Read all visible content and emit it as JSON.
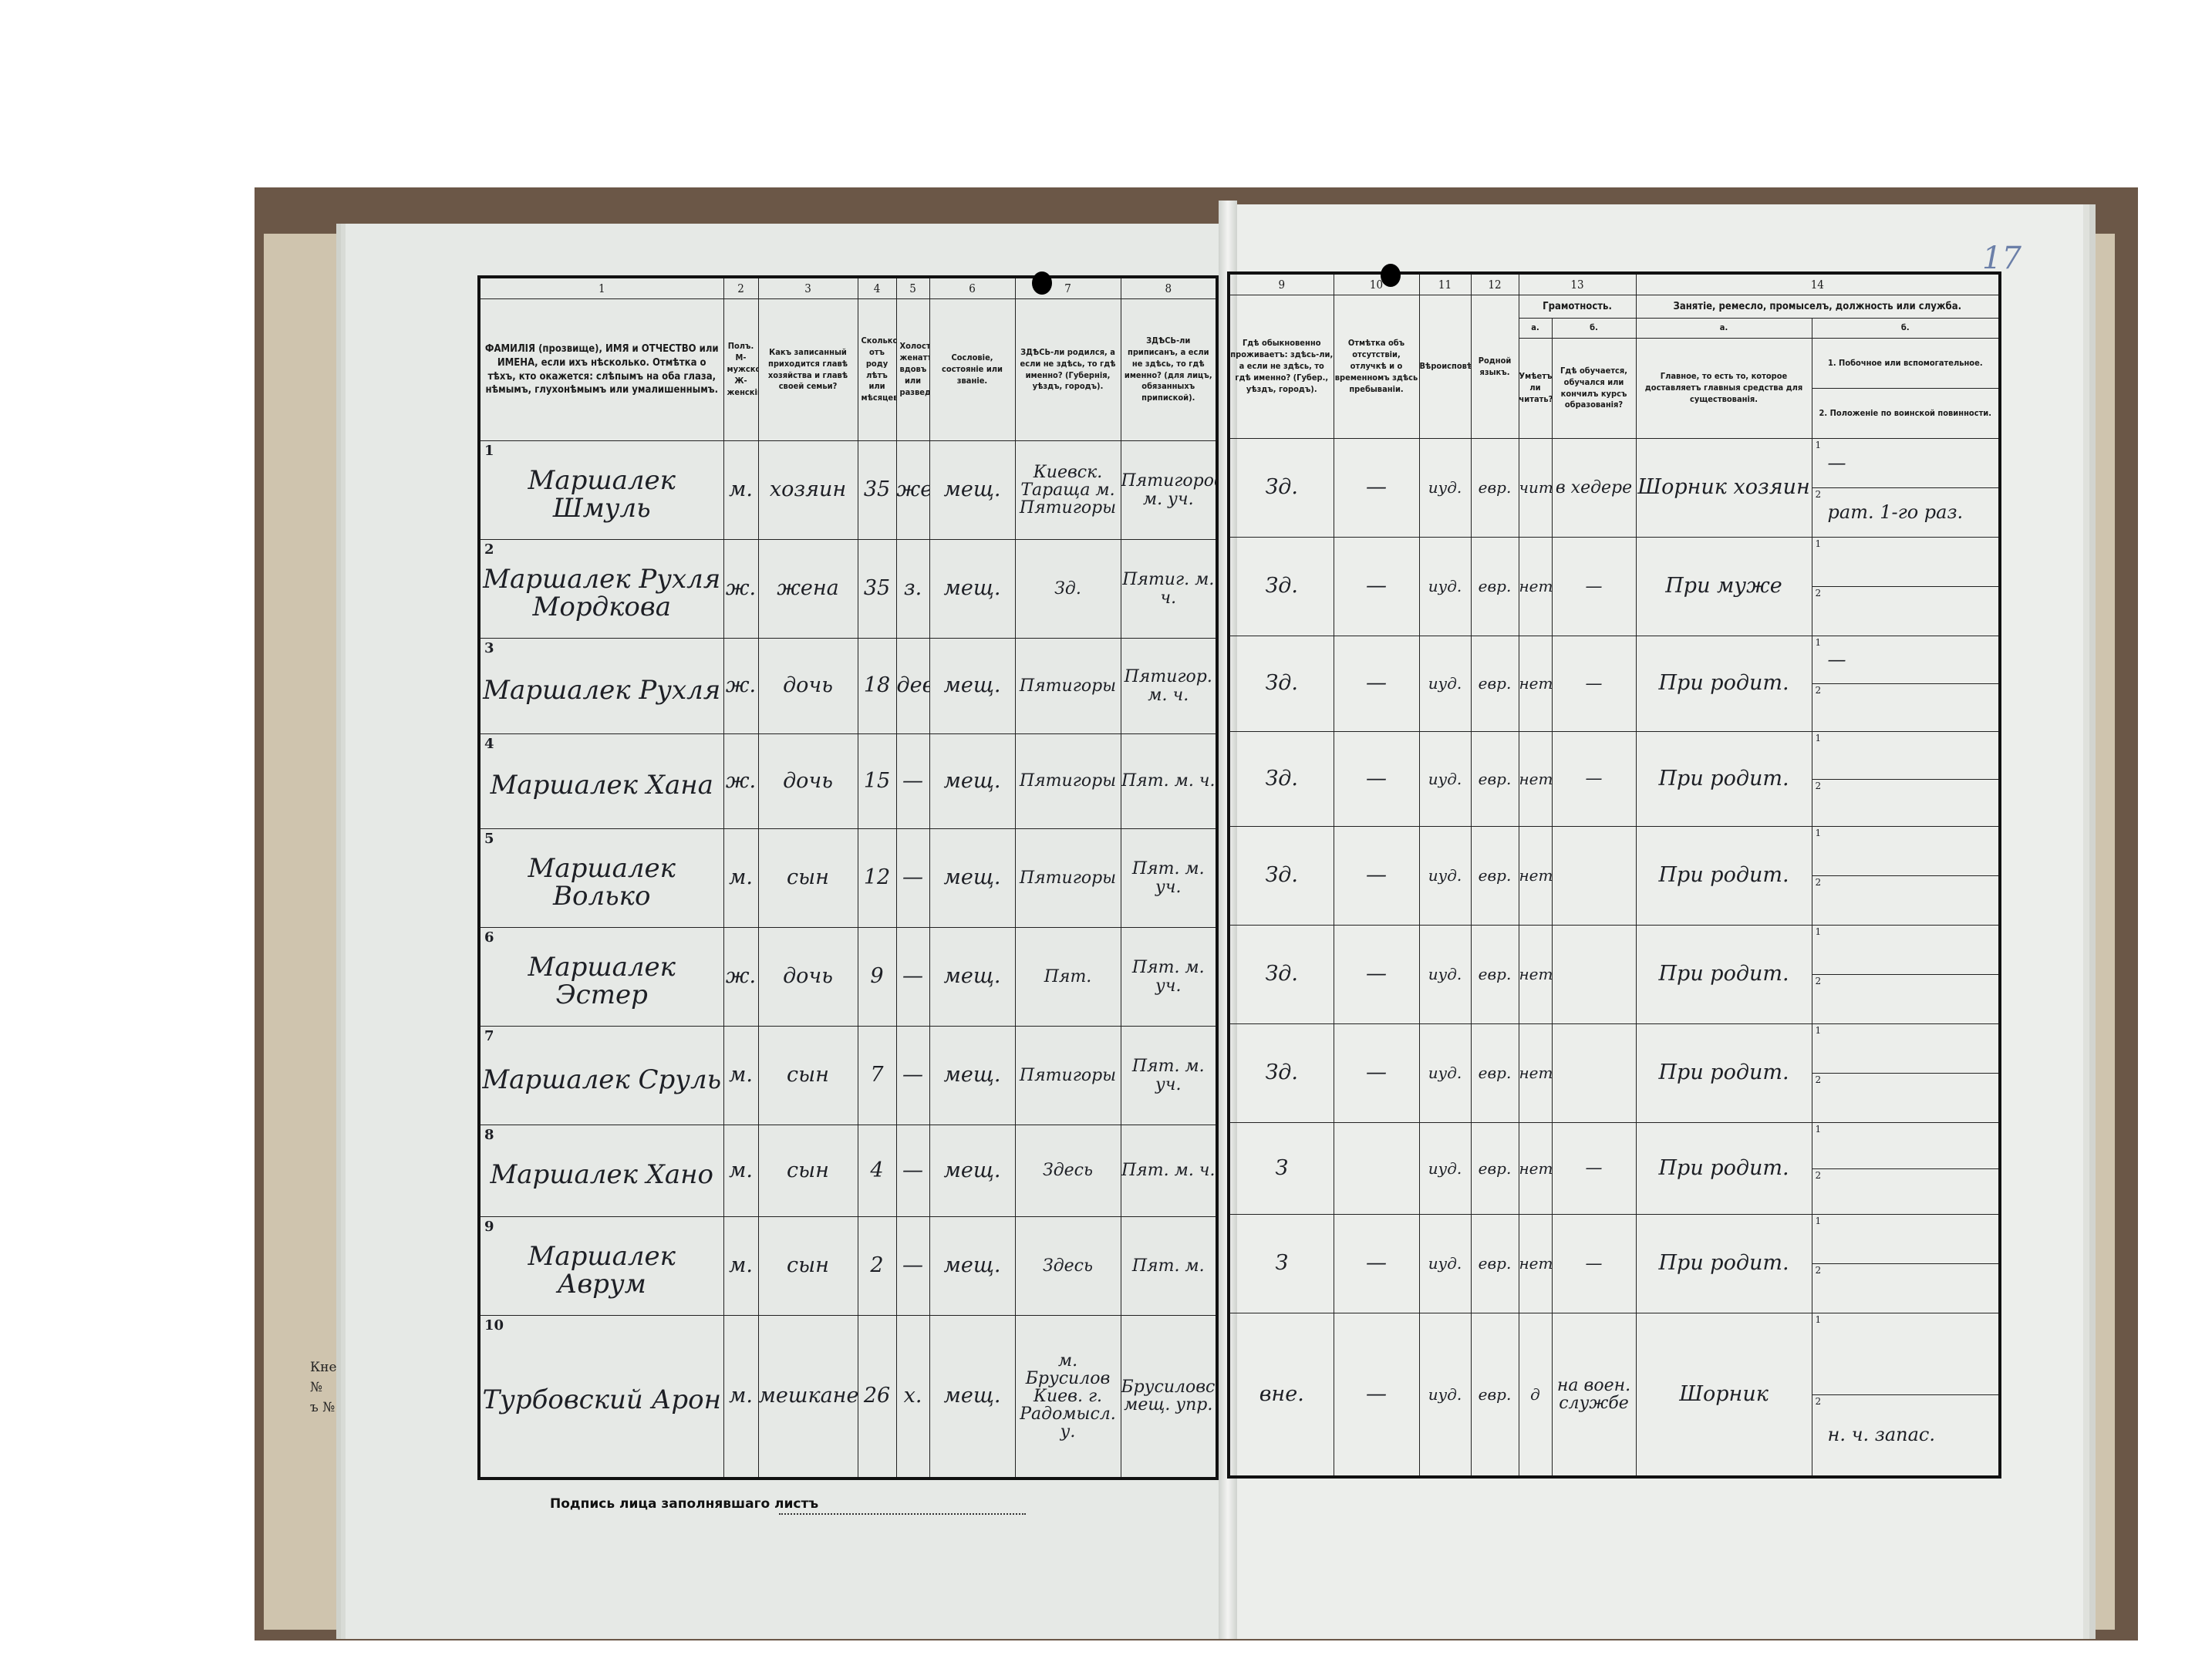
{
  "page_number": "17",
  "edge_fragments": [
    "Кне",
    "№",
    "ъ №"
  ],
  "signature_label": "Подпись лица заполнявшаго листъ",
  "left_headers": [
    {
      "num": "1",
      "text": "ФАМИЛІЯ (прозвище), ИМЯ и ОТЧЕСТВО или ИМЕНА, если ихъ нѣсколько. Отмѣтка о тѣхъ, кто окажется: слѣпымъ на оба глаза, нѣмымъ, глухонѣмымъ или умалишеннымъ."
    },
    {
      "num": "2",
      "text": "Полъ. М-мужской. Ж-женскій."
    },
    {
      "num": "3",
      "text": "Какъ записанный приходится главѣ хозяйства и главѣ своей семьи?"
    },
    {
      "num": "4",
      "text": "Сколько отъ роду лѣтъ или мѣсяцевъ?"
    },
    {
      "num": "5",
      "text": "Холостъ, женатъ, вдовъ или разведенъ."
    },
    {
      "num": "6",
      "text": "Сословіе, состояніе или званіе."
    },
    {
      "num": "7",
      "text": "ЗДѢСЬ-ли родился, а если не здѣсь, то гдѣ именно? (Губернія, уѣздъ, городъ)."
    },
    {
      "num": "8",
      "text": "ЗДѢСЬ-ли приписанъ, а если не здѣсь, то гдѣ именно? (для лицъ, обязанныхъ припиской)."
    }
  ],
  "right_headers": {
    "col9": {
      "num": "9",
      "text": "Гдѣ обыкновенно проживаетъ: здѣсь-ли, а если не здѣсь, то гдѣ именно? (Губер., уѣздъ, городъ)."
    },
    "col10": {
      "num": "10",
      "text": "Отмѣтка объ отсутствіи, отлучкѣ и о временномъ здѣсь пребываніи."
    },
    "col11": {
      "num": "11",
      "text": "Вѣроисповѣданіе."
    },
    "col12": {
      "num": "12",
      "text": "Родной языкъ."
    },
    "col13": {
      "num": "13",
      "title": "Грамотность.",
      "a_label": "а.",
      "a_text": "Умѣетъ-ли читать?",
      "b_label": "б.",
      "b_text": "Гдѣ обучается, обучался или кончилъ курсъ образованія?"
    },
    "col14": {
      "num": "14",
      "title": "Занятіе, ремесло, промыселъ, должность или служба.",
      "a_label": "а.",
      "a_text": "Главное, то есть то, которое доставляетъ главныя средства для существованія.",
      "b_label": "б.",
      "b1_text": "1. Побочное или вспомогательное.",
      "b2_text": "2. Положеніе по воинской повинности."
    }
  },
  "rows": [
    {
      "n": "1",
      "name": "Маршалек Шмуль",
      "sex": "м.",
      "relation": "хозяин",
      "age": "35",
      "marital": "жен.",
      "estate": "мещ.",
      "born": "Киевск. Тараща м. Пятигоры",
      "registered": "Пятигоровское м. уч.",
      "residence": "Зд.",
      "absence": "—",
      "religion": "иуд.",
      "language": "евр.",
      "literate": "чит.",
      "education": "в хедере",
      "occupation": "Шорник хозяин",
      "b1": "—",
      "b2": "рат. 1-го раз."
    },
    {
      "n": "2",
      "name": "Маршалек Рухля Мордкова",
      "sex": "ж.",
      "relation": "жена",
      "age": "35",
      "marital": "з.",
      "estate": "мещ.",
      "born": "Зд.",
      "registered": "Пятиг. м. ч.",
      "residence": "Зд.",
      "absence": "—",
      "religion": "иуд.",
      "language": "евр.",
      "literate": "нет",
      "education": "—",
      "occupation": "При муже",
      "b1": "",
      "b2": ""
    },
    {
      "n": "3",
      "name": "Маршалек Рухля",
      "sex": "ж.",
      "relation": "дочь",
      "age": "18",
      "marital": "дев.",
      "estate": "мещ.",
      "born": "Пятигоры",
      "registered": "Пятигор. м. ч.",
      "residence": "Зд.",
      "absence": "—",
      "religion": "иуд.",
      "language": "евр.",
      "literate": "нет",
      "education": "—",
      "occupation": "При родит.",
      "b1": "—",
      "b2": ""
    },
    {
      "n": "4",
      "name": "Маршалек Хана",
      "sex": "ж.",
      "relation": "дочь",
      "age": "15",
      "marital": "—",
      "estate": "мещ.",
      "born": "Пятигоры",
      "registered": "Пят. м. ч.",
      "residence": "Зд.",
      "absence": "—",
      "religion": "иуд.",
      "language": "евр.",
      "literate": "нет",
      "education": "—",
      "occupation": "При родит.",
      "b1": "",
      "b2": ""
    },
    {
      "n": "5",
      "name": "Маршалек Волько",
      "sex": "м.",
      "relation": "сын",
      "age": "12",
      "marital": "—",
      "estate": "мещ.",
      "born": "Пятигоры",
      "registered": "Пят. м. уч.",
      "residence": "Зд.",
      "absence": "—",
      "religion": "иуд.",
      "language": "евр.",
      "literate": "нет",
      "education": "",
      "occupation": "При родит.",
      "b1": "",
      "b2": ""
    },
    {
      "n": "6",
      "name": "Маршалек Эстер",
      "sex": "ж.",
      "relation": "дочь",
      "age": "9",
      "marital": "—",
      "estate": "мещ.",
      "born": "Пят.",
      "registered": "Пят. м. уч.",
      "residence": "Зд.",
      "absence": "—",
      "religion": "иуд.",
      "language": "евр.",
      "literate": "нет",
      "education": "",
      "occupation": "При родит.",
      "b1": "",
      "b2": ""
    },
    {
      "n": "7",
      "name": "Маршалек Сруль",
      "sex": "м.",
      "relation": "сын",
      "age": "7",
      "marital": "—",
      "estate": "мещ.",
      "born": "Пятигоры",
      "registered": "Пят. м. уч.",
      "residence": "Зд.",
      "absence": "—",
      "religion": "иуд.",
      "language": "евр.",
      "literate": "нет",
      "education": "",
      "occupation": "При родит.",
      "b1": "",
      "b2": ""
    },
    {
      "n": "8",
      "name": "Маршалек Хано",
      "sex": "м.",
      "relation": "сын",
      "age": "4",
      "marital": "—",
      "estate": "мещ.",
      "born": "Здесь",
      "registered": "Пят. м. ч.",
      "residence": "З",
      "absence": "",
      "religion": "иуд.",
      "language": "евр.",
      "literate": "нет",
      "education": "—",
      "occupation": "При родит.",
      "b1": "",
      "b2": ""
    },
    {
      "n": "9",
      "name": "Маршалек Аврум",
      "sex": "м.",
      "relation": "сын",
      "age": "2",
      "marital": "—",
      "estate": "мещ.",
      "born": "Здесь",
      "registered": "Пят. м.",
      "residence": "З",
      "absence": "—",
      "religion": "иуд.",
      "language": "евр.",
      "literate": "нет",
      "education": "—",
      "occupation": "При родит.",
      "b1": "",
      "b2": ""
    },
    {
      "n": "10",
      "name": "Турбовский Арон",
      "sex": "м.",
      "relation": "мешканец",
      "age": "26",
      "marital": "х.",
      "estate": "мещ.",
      "born": "м. Брусилов Киев. г. Радомысл. у.",
      "registered": "Брусиловск. мещ. упр.",
      "residence": "вне.",
      "absence": "—",
      "religion": "иуд.",
      "language": "евр.",
      "literate": "д",
      "education": "на воен. службе",
      "occupation": "Шорник",
      "b1": "",
      "b2": "н. ч. запас."
    }
  ]
}
